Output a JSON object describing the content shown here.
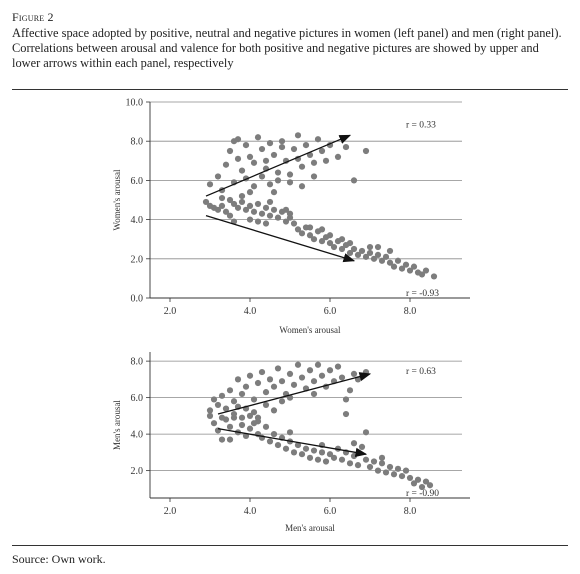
{
  "figure": {
    "label": "Figure 2",
    "caption": "Affective space adopted by positive, neutral and negative pictures in women (left panel) and men (right panel). Correlations between arousal and valence for both positive and negative pictures are showed by upper and lower arrows within each panel, respectively",
    "source": "Source: Own work."
  },
  "colors": {
    "points": "#7d7d7d",
    "grid": "#8a8a8a",
    "axis": "#333333",
    "arrow": "#111111"
  },
  "chart_data": [
    {
      "type": "scatter",
      "title": "",
      "xlabel": "Women's arousal",
      "ylabel": "Women's arousal",
      "xlim": [
        1.5,
        9.5
      ],
      "ylim": [
        0,
        10
      ],
      "xticks": [
        "2.0",
        "4.0",
        "6.0",
        "8.0"
      ],
      "yticks": [
        "0.0",
        "2.0",
        "4.0",
        "6.0",
        "8.0",
        "10.0"
      ],
      "grid": "horizontal",
      "annotations": [
        {
          "text": "r = 0.33",
          "x": 7.9,
          "y": 8.7
        },
        {
          "text": "r = -0.93",
          "x": 7.9,
          "y": 0.1
        }
      ],
      "arrows": [
        {
          "from": [
            2.9,
            5.2
          ],
          "to": [
            6.5,
            8.3
          ]
        },
        {
          "from": [
            2.9,
            4.2
          ],
          "to": [
            6.6,
            1.9
          ]
        }
      ],
      "series": [
        {
          "points": [
            [
              2.9,
              4.9
            ],
            [
              3.0,
              4.7
            ],
            [
              3.1,
              4.6
            ],
            [
              3.2,
              4.5
            ],
            [
              3.3,
              4.7
            ],
            [
              3.4,
              4.4
            ],
            [
              3.5,
              4.2
            ],
            [
              3.6,
              4.8
            ],
            [
              3.7,
              4.6
            ],
            [
              3.8,
              4.9
            ],
            [
              3.9,
              4.5
            ],
            [
              4.0,
              4.7
            ],
            [
              4.1,
              4.4
            ],
            [
              4.2,
              4.8
            ],
            [
              4.3,
              4.3
            ],
            [
              4.4,
              4.6
            ],
            [
              4.5,
              4.2
            ],
            [
              4.6,
              4.5
            ],
            [
              4.7,
              4.1
            ],
            [
              4.8,
              4.4
            ],
            [
              4.9,
              3.9
            ],
            [
              5.0,
              4.1
            ],
            [
              5.1,
              3.8
            ],
            [
              5.2,
              3.5
            ],
            [
              5.3,
              3.3
            ],
            [
              5.4,
              3.6
            ],
            [
              5.5,
              3.2
            ],
            [
              5.6,
              3.0
            ],
            [
              5.7,
              3.4
            ],
            [
              5.8,
              2.9
            ],
            [
              5.9,
              3.1
            ],
            [
              6.0,
              2.8
            ],
            [
              6.1,
              2.6
            ],
            [
              6.2,
              2.9
            ],
            [
              6.3,
              2.5
            ],
            [
              6.4,
              2.7
            ],
            [
              6.5,
              2.3
            ],
            [
              6.6,
              2.5
            ],
            [
              6.7,
              2.2
            ],
            [
              6.8,
              2.4
            ],
            [
              6.9,
              2.1
            ],
            [
              7.0,
              2.3
            ],
            [
              7.1,
              2.0
            ],
            [
              7.2,
              2.2
            ],
            [
              7.3,
              1.9
            ],
            [
              7.4,
              2.1
            ],
            [
              7.5,
              1.8
            ],
            [
              7.6,
              1.6
            ],
            [
              7.7,
              1.9
            ],
            [
              7.8,
              1.5
            ],
            [
              7.9,
              1.7
            ],
            [
              8.0,
              1.4
            ],
            [
              8.1,
              1.6
            ],
            [
              8.2,
              1.3
            ],
            [
              8.3,
              1.2
            ],
            [
              8.4,
              1.4
            ],
            [
              8.6,
              1.1
            ],
            [
              7.5,
              2.4
            ],
            [
              7.0,
              2.6
            ],
            [
              6.5,
              2.8
            ],
            [
              6.0,
              3.2
            ],
            [
              5.5,
              3.6
            ],
            [
              5.0,
              4.3
            ],
            [
              4.5,
              4.9
            ],
            [
              3.5,
              5.0
            ],
            [
              3.3,
              5.1
            ],
            [
              3.6,
              3.9
            ],
            [
              4.0,
              4.0
            ],
            [
              4.4,
              3.8
            ],
            [
              5.8,
              3.5
            ],
            [
              6.3,
              3.0
            ],
            [
              7.2,
              2.6
            ],
            [
              4.2,
              3.9
            ],
            [
              4.9,
              4.5
            ]
          ]
        },
        {
          "points": [
            [
              3.0,
              5.8
            ],
            [
              3.2,
              6.2
            ],
            [
              3.4,
              6.8
            ],
            [
              3.5,
              7.5
            ],
            [
              3.6,
              8.0
            ],
            [
              3.7,
              7.1
            ],
            [
              3.8,
              6.5
            ],
            [
              3.9,
              7.8
            ],
            [
              4.0,
              7.2
            ],
            [
              4.1,
              6.9
            ],
            [
              4.2,
              8.2
            ],
            [
              4.3,
              7.6
            ],
            [
              4.4,
              6.6
            ],
            [
              4.5,
              7.9
            ],
            [
              4.6,
              7.3
            ],
            [
              4.7,
              6.4
            ],
            [
              4.8,
              7.7
            ],
            [
              4.9,
              7.0
            ],
            [
              5.0,
              6.3
            ],
            [
              5.1,
              7.6
            ],
            [
              5.2,
              7.1
            ],
            [
              5.3,
              6.7
            ],
            [
              5.4,
              7.8
            ],
            [
              5.5,
              7.3
            ],
            [
              5.6,
              6.9
            ],
            [
              5.7,
              8.1
            ],
            [
              5.8,
              7.5
            ],
            [
              5.9,
              7.0
            ],
            [
              6.0,
              7.8
            ],
            [
              6.2,
              7.2
            ],
            [
              6.4,
              7.7
            ],
            [
              6.6,
              6.0
            ],
            [
              6.9,
              7.5
            ],
            [
              3.3,
              5.5
            ],
            [
              3.6,
              5.9
            ],
            [
              3.9,
              6.1
            ],
            [
              4.1,
              5.7
            ],
            [
              4.3,
              6.2
            ],
            [
              4.5,
              5.8
            ],
            [
              4.7,
              6.0
            ],
            [
              4.0,
              5.4
            ],
            [
              3.8,
              5.2
            ],
            [
              4.6,
              5.4
            ],
            [
              5.0,
              5.9
            ],
            [
              5.3,
              5.7
            ],
            [
              5.6,
              6.2
            ],
            [
              4.4,
              7.0
            ],
            [
              3.7,
              8.1
            ],
            [
              4.8,
              8.0
            ],
            [
              5.2,
              8.3
            ]
          ]
        }
      ]
    },
    {
      "type": "scatter",
      "title": "",
      "xlabel": "Men's arousal",
      "ylabel": "Men's arousal",
      "xlim": [
        1.5,
        9.5
      ],
      "ylim": [
        0.5,
        8.5
      ],
      "xticks": [
        "2.0",
        "4.0",
        "6.0",
        "8.0"
      ],
      "yticks": [
        "2.0",
        "4.0",
        "6.0",
        "8.0"
      ],
      "grid": "horizontal",
      "annotations": [
        {
          "text": "r = 0.63",
          "x": 7.9,
          "y": 7.3
        },
        {
          "text": "r = -0.90",
          "x": 7.9,
          "y": 0.6
        }
      ],
      "arrows": [
        {
          "from": [
            3.2,
            5.1
          ],
          "to": [
            7.0,
            7.3
          ]
        },
        {
          "from": [
            3.2,
            4.3
          ],
          "to": [
            6.9,
            2.9
          ]
        }
      ],
      "series": [
        {
          "points": [
            [
              3.0,
              5.0
            ],
            [
              3.1,
              4.6
            ],
            [
              3.2,
              4.2
            ],
            [
              3.3,
              3.7
            ],
            [
              3.4,
              4.8
            ],
            [
              3.5,
              4.4
            ],
            [
              3.6,
              4.9
            ],
            [
              3.7,
              4.1
            ],
            [
              3.8,
              4.5
            ],
            [
              3.9,
              3.9
            ],
            [
              4.0,
              4.3
            ],
            [
              4.1,
              4.6
            ],
            [
              4.2,
              4.0
            ],
            [
              4.3,
              3.8
            ],
            [
              4.4,
              4.4
            ],
            [
              4.5,
              3.6
            ],
            [
              4.6,
              4.0
            ],
            [
              4.7,
              3.4
            ],
            [
              4.8,
              3.8
            ],
            [
              4.9,
              3.2
            ],
            [
              5.0,
              3.6
            ],
            [
              5.1,
              3.0
            ],
            [
              5.2,
              3.4
            ],
            [
              5.3,
              2.9
            ],
            [
              5.4,
              3.2
            ],
            [
              5.5,
              2.7
            ],
            [
              5.6,
              3.1
            ],
            [
              5.7,
              2.6
            ],
            [
              5.8,
              3.0
            ],
            [
              5.9,
              2.5
            ],
            [
              6.0,
              2.9
            ],
            [
              6.1,
              2.7
            ],
            [
              6.2,
              3.2
            ],
            [
              6.3,
              2.6
            ],
            [
              6.4,
              3.0
            ],
            [
              6.5,
              2.4
            ],
            [
              6.6,
              2.8
            ],
            [
              6.7,
              2.3
            ],
            [
              6.8,
              3.3
            ],
            [
              6.9,
              2.6
            ],
            [
              7.0,
              2.2
            ],
            [
              7.1,
              2.5
            ],
            [
              7.2,
              2.0
            ],
            [
              7.3,
              2.4
            ],
            [
              7.4,
              1.9
            ],
            [
              7.5,
              2.2
            ],
            [
              7.6,
              1.8
            ],
            [
              7.7,
              2.1
            ],
            [
              7.8,
              1.7
            ],
            [
              7.9,
              2.0
            ],
            [
              8.0,
              1.6
            ],
            [
              8.1,
              1.3
            ],
            [
              8.2,
              1.5
            ],
            [
              8.3,
              1.1
            ],
            [
              8.4,
              1.4
            ],
            [
              8.5,
              1.2
            ],
            [
              6.6,
              3.5
            ],
            [
              6.9,
              4.1
            ],
            [
              6.4,
              5.1
            ],
            [
              3.5,
              3.7
            ],
            [
              4.2,
              4.7
            ],
            [
              5.0,
              4.1
            ],
            [
              5.8,
              3.4
            ],
            [
              7.3,
              2.7
            ],
            [
              3.8,
              4.9
            ]
          ]
        },
        {
          "points": [
            [
              3.0,
              5.3
            ],
            [
              3.1,
              5.9
            ],
            [
              3.2,
              5.6
            ],
            [
              3.3,
              6.1
            ],
            [
              3.4,
              5.4
            ],
            [
              3.5,
              6.4
            ],
            [
              3.6,
              5.8
            ],
            [
              3.7,
              7.0
            ],
            [
              3.8,
              6.2
            ],
            [
              3.9,
              6.6
            ],
            [
              4.0,
              7.2
            ],
            [
              4.1,
              5.9
            ],
            [
              4.2,
              6.8
            ],
            [
              4.3,
              7.4
            ],
            [
              4.4,
              6.3
            ],
            [
              4.5,
              7.0
            ],
            [
              4.6,
              6.6
            ],
            [
              4.7,
              7.6
            ],
            [
              4.8,
              6.9
            ],
            [
              4.9,
              6.2
            ],
            [
              5.0,
              7.3
            ],
            [
              5.1,
              6.7
            ],
            [
              5.2,
              7.8
            ],
            [
              5.3,
              7.1
            ],
            [
              5.4,
              6.5
            ],
            [
              5.5,
              7.5
            ],
            [
              5.6,
              6.9
            ],
            [
              5.7,
              7.8
            ],
            [
              5.8,
              7.2
            ],
            [
              5.9,
              6.6
            ],
            [
              6.0,
              7.5
            ],
            [
              6.1,
              6.9
            ],
            [
              6.2,
              7.7
            ],
            [
              6.3,
              7.1
            ],
            [
              6.5,
              6.4
            ],
            [
              6.6,
              7.3
            ],
            [
              6.7,
              7.0
            ],
            [
              6.9,
              7.4
            ],
            [
              3.3,
              4.9
            ],
            [
              3.6,
              5.1
            ],
            [
              3.9,
              5.4
            ],
            [
              4.1,
              5.2
            ],
            [
              4.4,
              5.6
            ],
            [
              4.6,
              5.3
            ],
            [
              4.8,
              5.8
            ],
            [
              5.0,
              6.0
            ],
            [
              4.2,
              4.9
            ],
            [
              3.7,
              5.5
            ],
            [
              4.0,
              5.0
            ],
            [
              5.6,
              6.2
            ],
            [
              6.4,
              5.9
            ]
          ]
        }
      ]
    }
  ]
}
